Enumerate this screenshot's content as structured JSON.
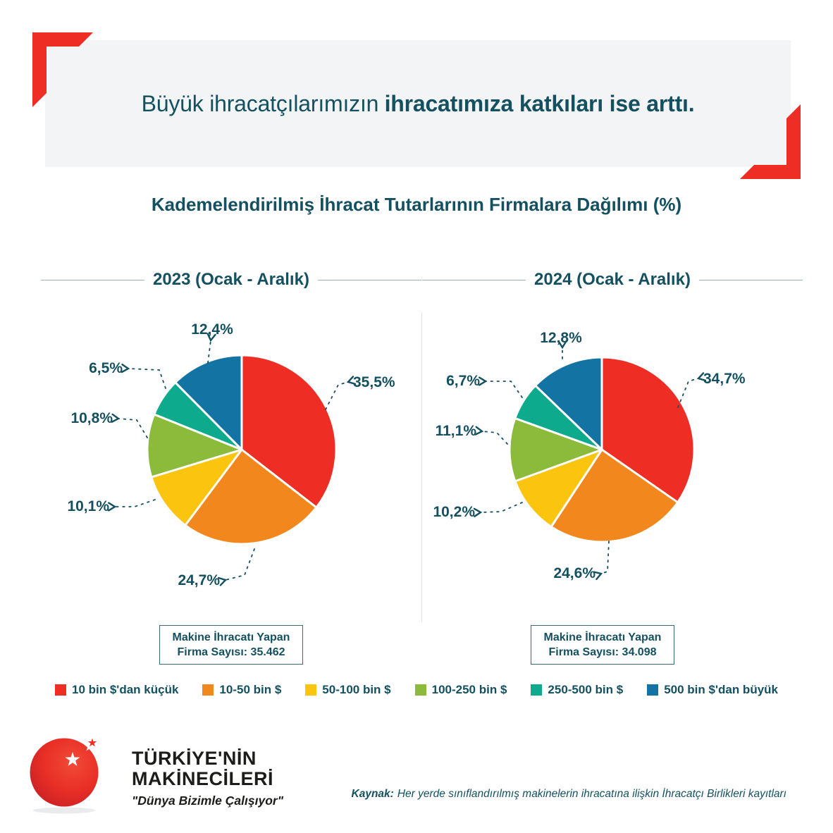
{
  "header": {
    "title_regular": "Büyük ihracatçılarımızın",
    "title_bold": "ihracatımıza katkıları ise arttı."
  },
  "subtitle": "Kademelendirilmiş İhracat Tutarlarının Firmalara Dağılımı (%)",
  "colors": {
    "accent_red": "#ee2e24",
    "text_teal": "#14505f",
    "banner_bg": "#f2f4f6"
  },
  "chart_data": [
    {
      "type": "pie",
      "title": "2023 (Ocak - Aralık)",
      "unit": "%",
      "categories": [
        "10 bin $'dan küçük",
        "10-50 bin $",
        "50-100 bin $",
        "100-250 bin $",
        "250-500 bin $",
        "500 bin $'dan büyük"
      ],
      "values": [
        35.5,
        24.7,
        10.1,
        10.8,
        6.5,
        12.4
      ],
      "value_labels": [
        "35,5%",
        "24,7%",
        "10,1%",
        "10,8%",
        "6,5%",
        "12,4%"
      ],
      "colors": [
        "#ee2e24",
        "#f2871d",
        "#fbc40f",
        "#8cba3b",
        "#0daa8d",
        "#1374a4"
      ],
      "legend_position": "bottom",
      "footnote_line1": "Makine İhracatı Yapan",
      "footnote_line2": "Firma Sayısı: 35.462"
    },
    {
      "type": "pie",
      "title": "2024 (Ocak - Aralık)",
      "unit": "%",
      "categories": [
        "10 bin $'dan küçük",
        "10-50 bin $",
        "50-100 bin $",
        "100-250 bin $",
        "250-500 bin $",
        "500 bin $'dan büyük"
      ],
      "values": [
        34.7,
        24.6,
        10.2,
        11.1,
        6.7,
        12.8
      ],
      "value_labels": [
        "34,7%",
        "24,6%",
        "10,2%",
        "11,1%",
        "6,7%",
        "12,8%"
      ],
      "colors": [
        "#ee2e24",
        "#f2871d",
        "#fbc40f",
        "#8cba3b",
        "#0daa8d",
        "#1374a4"
      ],
      "legend_position": "bottom",
      "footnote_line1": "Makine İhracatı Yapan",
      "footnote_line2": "Firma Sayısı: 34.098"
    }
  ],
  "legend": {
    "items": [
      {
        "label": "10 bin $'dan küçük",
        "color": "#ee2e24"
      },
      {
        "label": "10-50 bin $",
        "color": "#f2871d"
      },
      {
        "label": "50-100 bin $",
        "color": "#fbc40f"
      },
      {
        "label": "100-250 bin $",
        "color": "#8cba3b"
      },
      {
        "label": "250-500 bin $",
        "color": "#0daa8d"
      },
      {
        "label": "500 bin $'dan büyük",
        "color": "#1374a4"
      }
    ]
  },
  "brand": {
    "name_line1": "TÜRKİYE'NİN",
    "name_line2": "MAKİNECİLERİ",
    "tagline": "\"Dünya Bizimle Çalışıyor\""
  },
  "source": {
    "label": "Kaynak:",
    "text": "Her yerde sınıflandırılmış makinelerin ihracatına ilişkin İhracatçı Birlikleri kayıtları"
  }
}
